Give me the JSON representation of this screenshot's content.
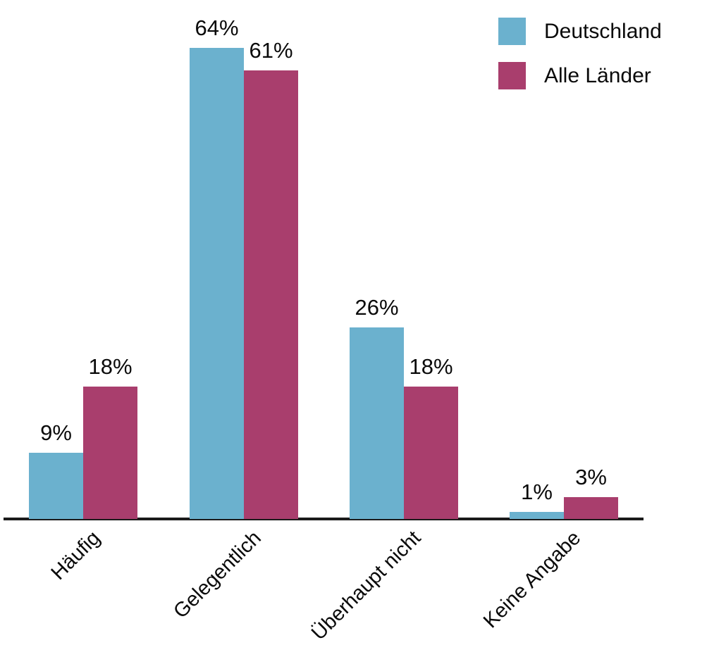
{
  "chart_data": {
    "type": "bar",
    "title": "",
    "xlabel": "",
    "ylabel": "",
    "categories": [
      "Häufig",
      "Gelegentlich",
      "Überhaupt nicht",
      "Keine Angabe"
    ],
    "series": [
      {
        "name": "Deutschland",
        "color": "#6bb1ce",
        "values": [
          9,
          64,
          26,
          1
        ],
        "labels": [
          "9%",
          "64%",
          "26%",
          "1%"
        ]
      },
      {
        "name": "Alle Länder",
        "color": "#a93e6d",
        "values": [
          18,
          61,
          18,
          3
        ],
        "labels": [
          "18%",
          "61%",
          "18%",
          "3%"
        ]
      }
    ],
    "ylim": [
      0,
      70
    ],
    "grid": false,
    "legend_position": "top-right",
    "axis_color": "#1b1b1b",
    "background_color": "#ffffff",
    "text_color": "#0a0a0a"
  }
}
